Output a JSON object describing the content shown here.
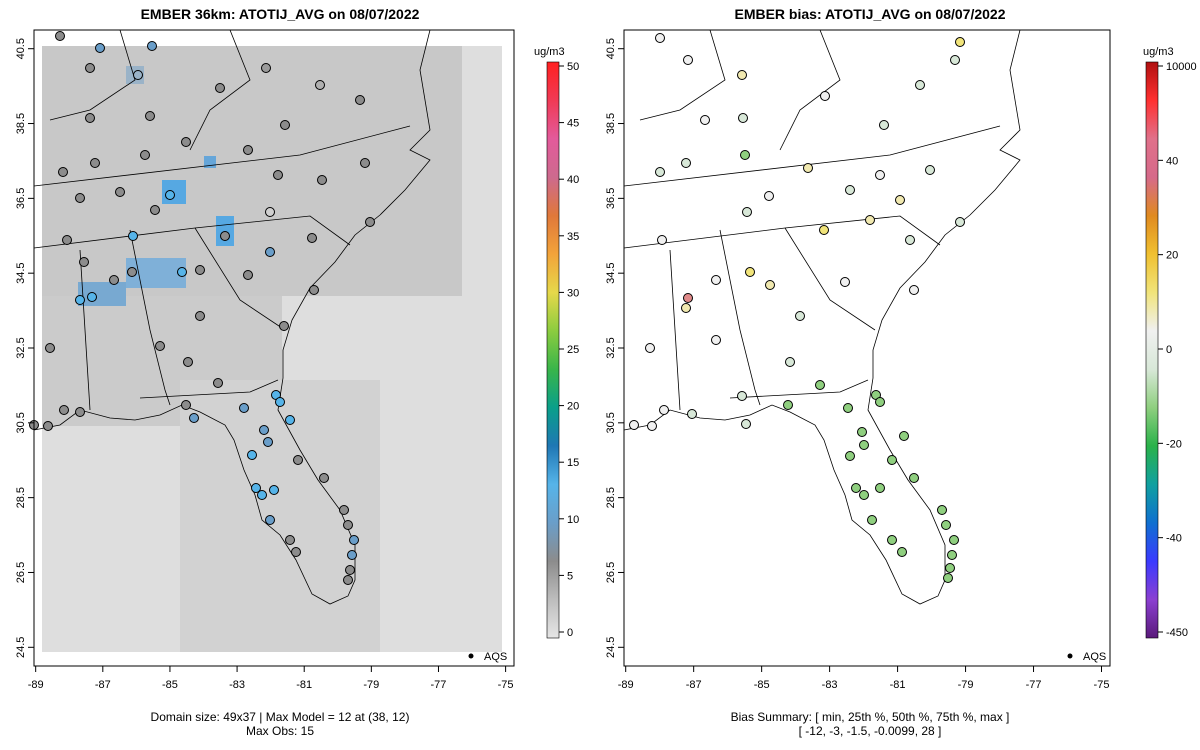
{
  "left_panel": {
    "title": "EMBER 36km: ATOTIJ_AVG on 08/07/2022",
    "footer_line1": "Domain size: 49x37 | Max Model = 12 at (38, 12)",
    "footer_line2": "Max Obs: 15",
    "legend_marker": "AQS",
    "colorbar": {
      "unit": "ug/m3",
      "ticks": [
        "0",
        "5",
        "10",
        "15",
        "20",
        "25",
        "30",
        "35",
        "40",
        "45",
        "50"
      ],
      "stops": [
        "#e6e6e6",
        "#bdbdbd",
        "#8c8c8c",
        "#6a9ec9",
        "#56b4e9",
        "#1f77b4",
        "#0a9f8a",
        "#39b54a",
        "#8ccc3f",
        "#e6d84a",
        "#f2a33a",
        "#e0783a",
        "#cd6a8e",
        "#e35a9b",
        "#f03a55",
        "#ff2020"
      ]
    }
  },
  "right_panel": {
    "title": "EMBER bias: ATOTIJ_AVG on 08/07/2022",
    "footer_line1": "Bias Summary: [ min, 25th %, 50th %, 75th %, max ]",
    "footer_line2": "[ -12,   -3,   -1.5,   -0.0099,   28 ]",
    "legend_marker": "AQS",
    "colorbar": {
      "unit": "ug/m3",
      "ticks": [
        "-450",
        "-40",
        "-20",
        "0",
        "20",
        "40",
        "10000"
      ],
      "stops": [
        "#5a1a7a",
        "#8b3fd1",
        "#3a3aff",
        "#1070d0",
        "#10a0a0",
        "#2ab24a",
        "#8fcf7f",
        "#d8e8d8",
        "#f0f0f0",
        "#f1e47a",
        "#f0c030",
        "#e08a20",
        "#d66a8a",
        "#e0708a",
        "#ff3030",
        "#b01010"
      ]
    }
  },
  "axes": {
    "x_ticks": [
      "-89",
      "-87",
      "-85",
      "-83",
      "-81",
      "-79",
      "-77",
      "-75"
    ],
    "y_ticks": [
      "24.5",
      "26.5",
      "28.5",
      "30.5",
      "32.5",
      "34.5",
      "36.5",
      "38.5",
      "40.5"
    ]
  },
  "colors": {
    "ocean_gray": "#e3e3e3",
    "land_gray": "#cfcfcf",
    "frame": "#000000"
  }
}
